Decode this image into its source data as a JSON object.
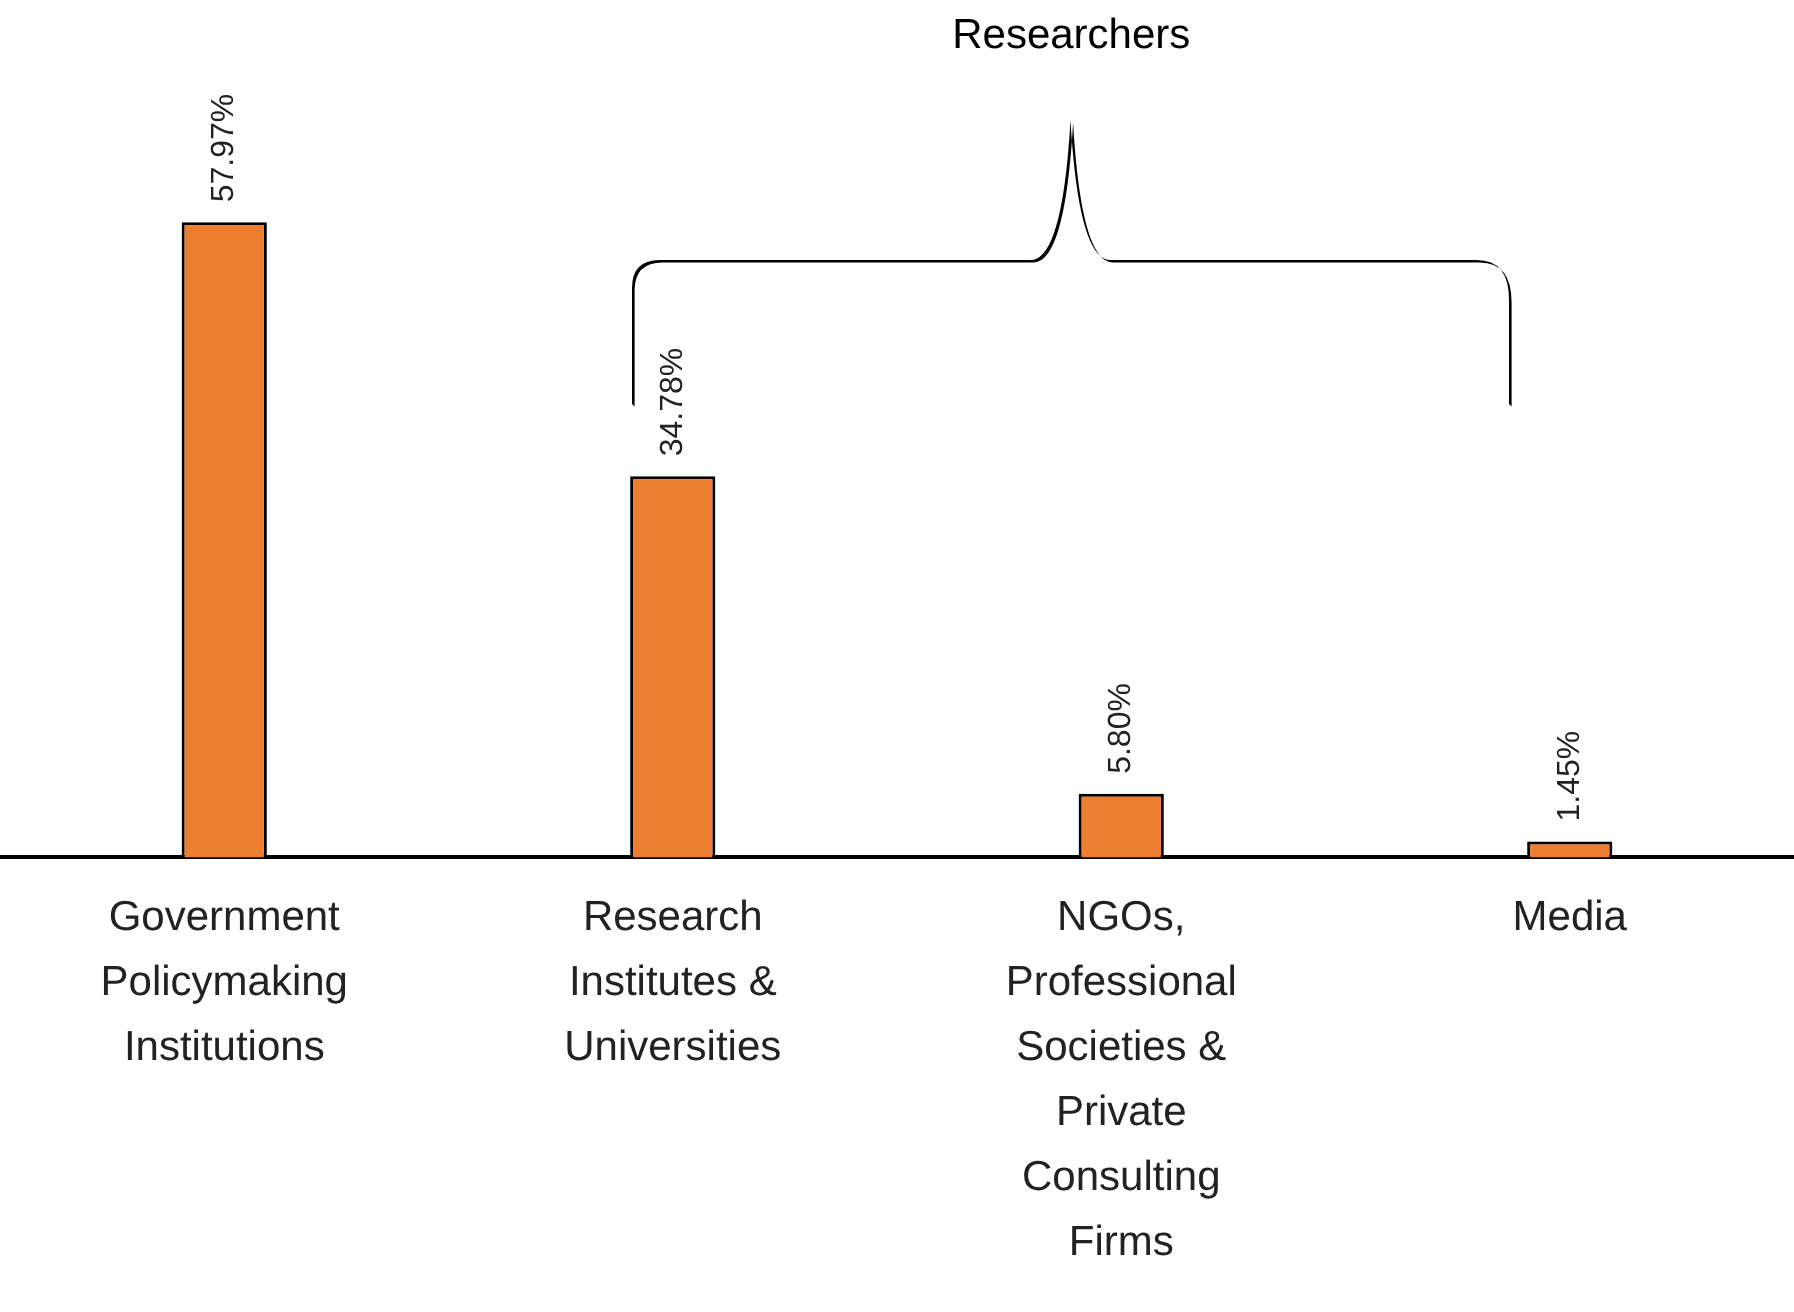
{
  "chart_data": {
    "type": "bar",
    "categories": [
      "Government Policymaking Institutions",
      "Research Institutes & Universities",
      "NGOs, Professional Societies & Private Consulting Firms",
      "Media"
    ],
    "values": [
      57.97,
      34.78,
      5.8,
      1.45
    ],
    "value_labels": [
      "57.97%",
      "34.78%",
      "5.80%",
      "1.45%"
    ],
    "color": "#ed7d31",
    "annotations": [
      "Researchers"
    ]
  }
}
